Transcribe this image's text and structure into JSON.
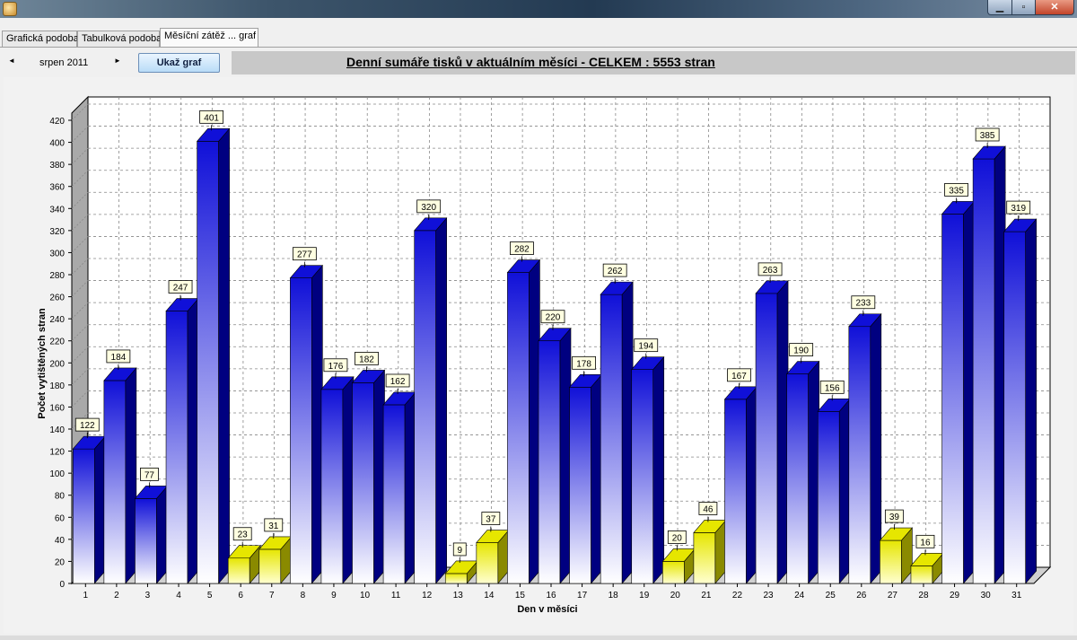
{
  "window": {
    "minimize_glyph": "▁",
    "maximize_glyph": "▫",
    "close_glyph": "✕"
  },
  "tabs": [
    {
      "label": "Grafická podoba"
    },
    {
      "label": "Tabulková podoba"
    },
    {
      "label": "Měsíční zátěž ... graf"
    }
  ],
  "toolbar": {
    "prev_glyph": "◄",
    "next_glyph": "►",
    "month": "srpen 2011",
    "show_button": "Ukaž graf",
    "headline": "Denní sumáře tisků v aktuálním měsíci - CELKEM : 5553 stran"
  },
  "chart_data": {
    "type": "bar",
    "title": "",
    "xlabel": "Den v měsíci",
    "ylabel": "Počet vytištěných stran",
    "ylim": [
      0,
      420
    ],
    "ytick_step": 20,
    "grid": true,
    "legend": "none",
    "categories": [
      "1",
      "2",
      "3",
      "4",
      "5",
      "6",
      "7",
      "8",
      "9",
      "10",
      "11",
      "12",
      "13",
      "14",
      "15",
      "16",
      "17",
      "18",
      "19",
      "20",
      "21",
      "22",
      "23",
      "24",
      "25",
      "26",
      "27",
      "28",
      "29",
      "30",
      "31"
    ],
    "values": [
      122,
      184,
      77,
      247,
      401,
      23,
      31,
      277,
      176,
      182,
      162,
      320,
      9,
      37,
      282,
      220,
      178,
      262,
      194,
      20,
      46,
      167,
      263,
      190,
      156,
      233,
      39,
      16,
      335,
      385,
      319
    ],
    "weekend_days": [
      "6",
      "7",
      "13",
      "14",
      "20",
      "21",
      "27",
      "28"
    ],
    "colors": {
      "weekday_top": "#1010d8",
      "weekday_bottom": "#ffffff",
      "weekday_side": "#000080",
      "weekend_top": "#e6e600",
      "weekend_bottom": "#ffffd0",
      "weekend_side": "#8a8a00",
      "label_bg": "#ffffe1"
    }
  }
}
